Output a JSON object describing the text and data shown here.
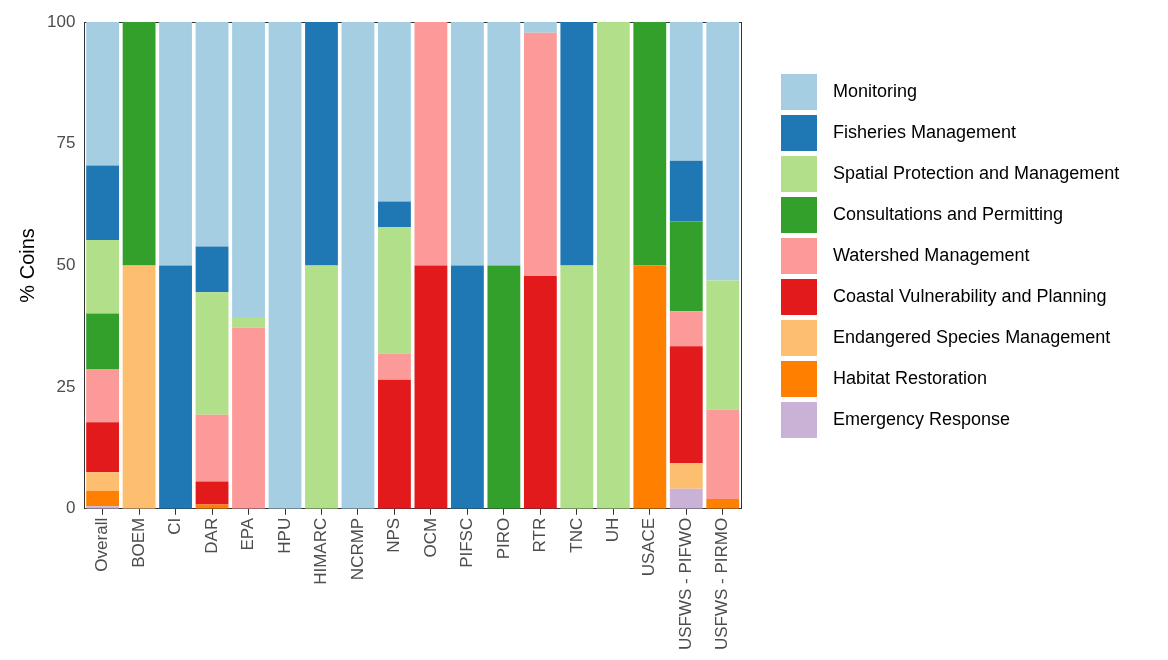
{
  "chart_data": {
    "type": "bar",
    "stacked": true,
    "ylabel": "% Coins",
    "categories": [
      "Overall",
      "BOEM",
      "CI",
      "DAR",
      "EPA",
      "HPU",
      "HIMARC",
      "NCRMP",
      "NPS",
      "OCM",
      "PIFSC",
      "PIRO",
      "RTR",
      "TNC",
      "UH",
      "USACE",
      "USFWS - PIFWO",
      "USFWS - PIRMO"
    ],
    "series": [
      {
        "name": "Emergency Response",
        "color": "#cab2d6",
        "values": [
          0.5,
          0,
          0,
          0,
          0,
          0,
          0,
          0,
          0,
          0,
          0,
          0,
          0,
          0,
          0,
          0,
          4.1,
          0
        ]
      },
      {
        "name": "Habitat Restoration",
        "color": "#ff7f00",
        "values": [
          3.2,
          0,
          0,
          0.9,
          0,
          0,
          0,
          0,
          0,
          0,
          0,
          0,
          0,
          0,
          0,
          50,
          0,
          2.0
        ]
      },
      {
        "name": "Endangered Species Management",
        "color": "#fdbf6f",
        "values": [
          3.8,
          50,
          0,
          0,
          0,
          0,
          0,
          0,
          0,
          0,
          0,
          0,
          0,
          0,
          0,
          0,
          5.3,
          0
        ]
      },
      {
        "name": "Coastal Vulnerability and Planning",
        "color": "#e31a1c",
        "values": [
          10.3,
          0,
          0,
          4.7,
          0,
          0,
          0,
          0,
          26.5,
          50,
          0,
          0,
          47.8,
          0,
          0,
          0,
          24.0,
          0
        ]
      },
      {
        "name": "Watershed Management",
        "color": "#fb9a99",
        "values": [
          10.8,
          0,
          0,
          13.7,
          37.2,
          0,
          0,
          0,
          5.4,
          50,
          0,
          0,
          50.0,
          0,
          0,
          0,
          7.2,
          18.4
        ]
      },
      {
        "name": "Consultations and Permitting",
        "color": "#33a02c",
        "values": [
          11.5,
          50,
          0,
          0,
          0,
          0,
          0,
          0,
          0,
          0,
          0,
          50,
          0,
          0,
          0,
          50,
          18.4,
          0
        ]
      },
      {
        "name": "Spatial Protection and Management",
        "color": "#b2df8a",
        "values": [
          15.1,
          0,
          0,
          25.2,
          2.2,
          0,
          50,
          0,
          26.0,
          0,
          0,
          0,
          0,
          50,
          100,
          0,
          0,
          26.5
        ]
      },
      {
        "name": "Fisheries Management",
        "color": "#1f78b4",
        "values": [
          15.3,
          0,
          50,
          9.4,
          0,
          0,
          50,
          0,
          5.2,
          0,
          50,
          0,
          0,
          50,
          0,
          0,
          12.5,
          0
        ]
      },
      {
        "name": "Monitoring",
        "color": "#a6cee3",
        "values": [
          29.5,
          0,
          50,
          46.1,
          60.6,
          100,
          0,
          100,
          36.9,
          0,
          50,
          50,
          2.2,
          0,
          0,
          0,
          28.5,
          53.1
        ]
      }
    ],
    "ylim": [
      0,
      100
    ],
    "yticks": [
      0,
      25,
      50,
      75,
      100
    ],
    "grid": false,
    "legend": "right"
  }
}
